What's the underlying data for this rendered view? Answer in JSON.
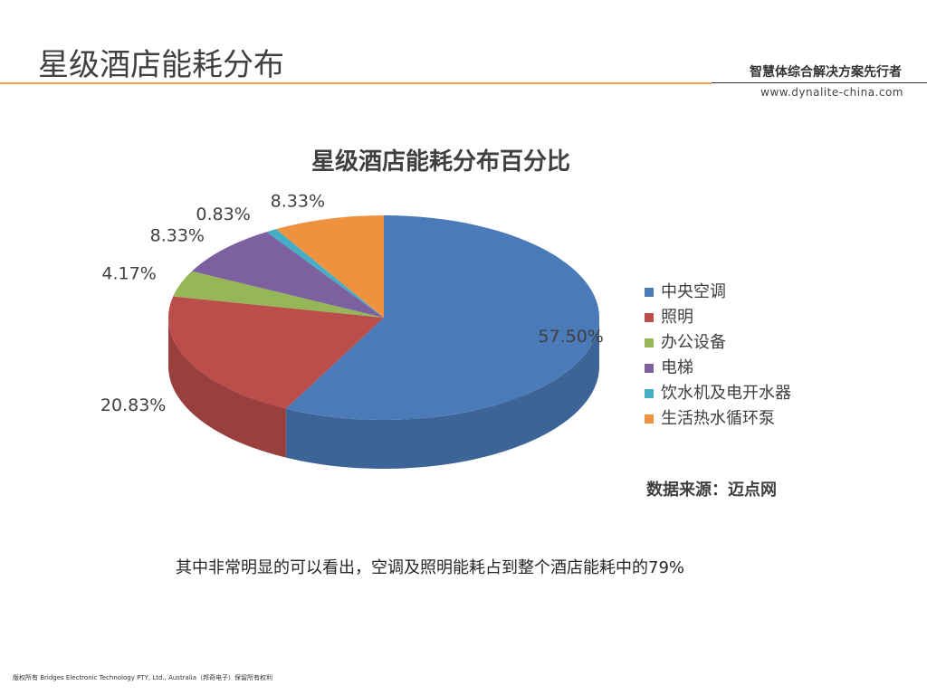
{
  "slide": {
    "title": "星级酒店能耗分布",
    "brand_name": "智慧体综合解决方案先行者",
    "brand_url": "www.dynalite-china.com",
    "body_text": "其中非常明显的可以看出，空调及照明能耗占到整个酒店能耗中的79%",
    "footer": "版权所有 Bridges Electronic Technology PTY, Ltd., Australia（邦奇电子）保留所有权利",
    "colors": {
      "accent_rule": "#f0a050"
    }
  },
  "chart_data": {
    "type": "pie",
    "title": "星级酒店能耗分布百分比",
    "legend_position": "right",
    "source_note": "数据来源：迈点网",
    "slices": [
      {
        "label": "中央空调",
        "value": 57.5,
        "display": "57.50%",
        "color": "#4a7ab7"
      },
      {
        "label": "照明",
        "value": 20.83,
        "display": "20.83%",
        "color": "#bb4d4a"
      },
      {
        "label": "办公设备",
        "value": 4.17,
        "display": "4.17%",
        "color": "#95b757"
      },
      {
        "label": "电梯",
        "value": 8.33,
        "display": "8.33%",
        "color": "#7c60a0"
      },
      {
        "label": "饮水机及电开水器",
        "value": 0.83,
        "display": "0.83%",
        "color": "#45aec6"
      },
      {
        "label": "生活热水循环泵",
        "value": 8.33,
        "display": "8.33%",
        "color": "#ef9240"
      }
    ]
  }
}
